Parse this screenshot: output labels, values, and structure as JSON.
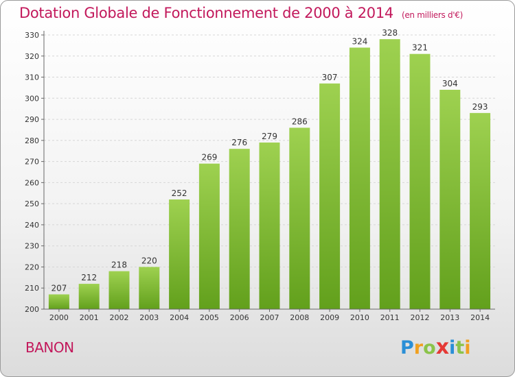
{
  "header": {
    "title": "Dotation Globale de Fonctionnement de 2000 à 2014",
    "unit": "(en milliers d'€)"
  },
  "footer": {
    "commune": "BANON",
    "logo_text": "Proxiti",
    "logo_letters": [
      "P",
      "r",
      "o",
      "x",
      "i",
      "t",
      "i"
    ]
  },
  "chart_data": {
    "type": "bar",
    "categories": [
      "2000",
      "2001",
      "2002",
      "2003",
      "2004",
      "2005",
      "2006",
      "2007",
      "2008",
      "2009",
      "2010",
      "2011",
      "2012",
      "2013",
      "2014"
    ],
    "values": [
      207,
      212,
      218,
      220,
      252,
      269,
      276,
      279,
      286,
      307,
      324,
      328,
      321,
      304,
      293
    ],
    "data_labels": [
      "207",
      "212",
      "218",
      "220",
      "252",
      "269",
      "276",
      "279",
      "286",
      "307",
      "324",
      "328",
      "321",
      "304",
      "293"
    ],
    "ylim": [
      200,
      330
    ],
    "yticks": [
      200,
      210,
      220,
      230,
      240,
      250,
      260,
      270,
      280,
      290,
      300,
      310,
      320,
      330
    ],
    "grid": true,
    "legend": "none",
    "colors": {
      "bar_light": "#9ed150",
      "bar_dark": "#62a01c",
      "label": "#333333",
      "axis": "#666666",
      "accent": "#c2185b"
    }
  }
}
